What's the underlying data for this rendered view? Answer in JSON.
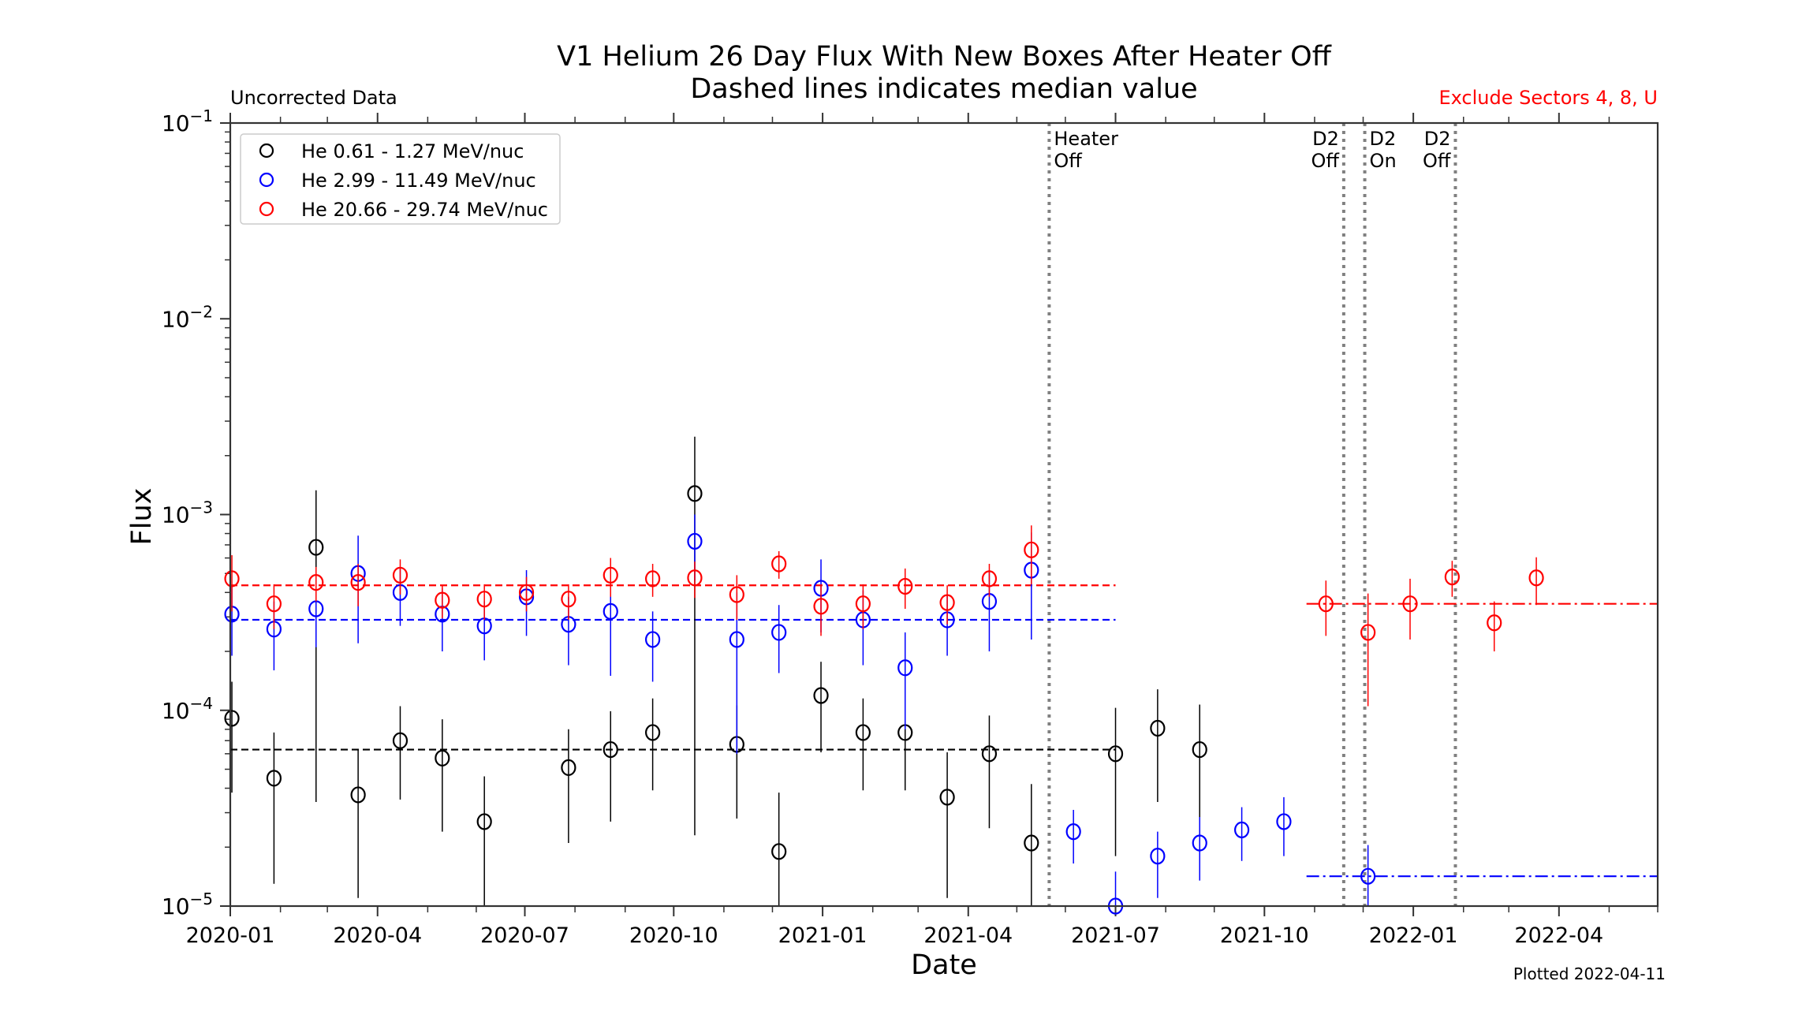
{
  "chart_data": {
    "type": "scatter",
    "title": "V1 Helium 26 Day Flux With New Boxes After Heater Off",
    "subtitle": "Dashed lines indicates median value",
    "left_note": "Uncorrected Data",
    "right_note": "Exclude Sectors 4, 8, U",
    "footer": "Plotted 2022-04-11",
    "xlabel": "Date",
    "ylabel": "Flux",
    "yscale": "log",
    "ylim": [
      1e-05,
      0.1
    ],
    "xlim_days": [
      0,
      882
    ],
    "x_epoch": "2020-01-01",
    "x_ticks": [
      {
        "label": "2020-01",
        "day": 0
      },
      {
        "label": "2020-04",
        "day": 91
      },
      {
        "label": "2020-07",
        "day": 182
      },
      {
        "label": "2020-10",
        "day": 274
      },
      {
        "label": "2021-01",
        "day": 366
      },
      {
        "label": "2021-04",
        "day": 456
      },
      {
        "label": "2021-07",
        "day": 547
      },
      {
        "label": "2021-10",
        "day": 639
      },
      {
        "label": "2022-01",
        "day": 731
      },
      {
        "label": "2022-04",
        "day": 821
      }
    ],
    "x_minor_days": [
      31,
      60,
      122,
      152,
      213,
      244,
      305,
      335,
      397,
      425,
      486,
      516,
      578,
      608,
      670,
      700,
      762,
      790,
      852
    ],
    "y_ticks": [
      {
        "label_base": "10",
        "label_exp": "−1",
        "value": 0.1
      },
      {
        "label_base": "10",
        "label_exp": "−2",
        "value": 0.01
      },
      {
        "label_base": "10",
        "label_exp": "−3",
        "value": 0.001
      },
      {
        "label_base": "10",
        "label_exp": "−4",
        "value": 0.0001
      },
      {
        "label_base": "10",
        "label_exp": "−5",
        "value": 1e-05
      }
    ],
    "legend_position": "top-left",
    "series": [
      {
        "name": "He 0.61 - 1.27 MeV/nuc",
        "color": "#000000",
        "points": [
          {
            "day": 1,
            "y": 9.1e-05,
            "lo": 3.8e-05,
            "hi": 0.00014
          },
          {
            "day": 27,
            "y": 4.5e-05,
            "lo": 1.3e-05,
            "hi": 7.7e-05
          },
          {
            "day": 53,
            "y": 0.00068,
            "lo": 3.4e-05,
            "hi": 0.00133
          },
          {
            "day": 79,
            "y": 3.7e-05,
            "lo": 1.1e-05,
            "hi": 6.3e-05
          },
          {
            "day": 105,
            "y": 7e-05,
            "lo": 3.5e-05,
            "hi": 0.000105
          },
          {
            "day": 131,
            "y": 5.7e-05,
            "lo": 2.4e-05,
            "hi": 9e-05
          },
          {
            "day": 157,
            "y": 2.7e-05,
            "lo": 1e-05,
            "hi": 4.6e-05
          },
          {
            "day": 209,
            "y": 5.1e-05,
            "lo": 2.1e-05,
            "hi": 8e-05
          },
          {
            "day": 235,
            "y": 6.3e-05,
            "lo": 2.7e-05,
            "hi": 9.9e-05
          },
          {
            "day": 261,
            "y": 7.7e-05,
            "lo": 3.9e-05,
            "hi": 0.000115
          },
          {
            "day": 287,
            "y": 0.00128,
            "lo": 2.3e-05,
            "hi": 0.0025
          },
          {
            "day": 313,
            "y": 6.7e-05,
            "lo": 2.8e-05,
            "hi": 0.000106
          },
          {
            "day": 339,
            "y": 1.9e-05,
            "lo": 1e-05,
            "hi": 3.8e-05
          },
          {
            "day": 365,
            "y": 0.000119,
            "lo": 6.1e-05,
            "hi": 0.000177
          },
          {
            "day": 391,
            "y": 7.7e-05,
            "lo": 3.9e-05,
            "hi": 0.000115
          },
          {
            "day": 417,
            "y": 7.7e-05,
            "lo": 3.9e-05,
            "hi": 0.000115
          },
          {
            "day": 443,
            "y": 3.6e-05,
            "lo": 1.1e-05,
            "hi": 6.1e-05
          },
          {
            "day": 469,
            "y": 6e-05,
            "lo": 2.5e-05,
            "hi": 9.4e-05
          },
          {
            "day": 495,
            "y": 2.1e-05,
            "lo": 1e-05,
            "hi": 4.2e-05
          },
          {
            "day": 547,
            "y": 6e-05,
            "lo": 1.8e-05,
            "hi": 0.000103
          },
          {
            "day": 573,
            "y": 8.1e-05,
            "lo": 3.4e-05,
            "hi": 0.000128
          },
          {
            "day": 599,
            "y": 6.3e-05,
            "lo": 1.9e-05,
            "hi": 0.000107
          }
        ],
        "median": 6.3e-05,
        "median_style": "dashed",
        "median_range_days": [
          0,
          547
        ]
      },
      {
        "name": "He 2.99 - 11.49 MeV/nuc",
        "color": "#0000ff",
        "points": [
          {
            "day": 1,
            "y": 0.00031,
            "lo": 0.00019,
            "hi": 0.00043
          },
          {
            "day": 27,
            "y": 0.00026,
            "lo": 0.00016,
            "hi": 0.00036
          },
          {
            "day": 53,
            "y": 0.00033,
            "lo": 0.00021,
            "hi": 0.00045
          },
          {
            "day": 79,
            "y": 0.0005,
            "lo": 0.00022,
            "hi": 0.00078
          },
          {
            "day": 105,
            "y": 0.0004,
            "lo": 0.00027,
            "hi": 0.00053
          },
          {
            "day": 131,
            "y": 0.00031,
            "lo": 0.0002,
            "hi": 0.00042
          },
          {
            "day": 157,
            "y": 0.00027,
            "lo": 0.00018,
            "hi": 0.00036
          },
          {
            "day": 183,
            "y": 0.00038,
            "lo": 0.00024,
            "hi": 0.00052
          },
          {
            "day": 209,
            "y": 0.000275,
            "lo": 0.00017,
            "hi": 0.00038
          },
          {
            "day": 235,
            "y": 0.00032,
            "lo": 0.00015,
            "hi": 0.00049
          },
          {
            "day": 261,
            "y": 0.00023,
            "lo": 0.00014,
            "hi": 0.00032
          },
          {
            "day": 287,
            "y": 0.00073,
            "lo": 0.00046,
            "hi": 0.001
          },
          {
            "day": 313,
            "y": 0.00023,
            "lo": 6e-05,
            "hi": 0.0004
          },
          {
            "day": 339,
            "y": 0.00025,
            "lo": 0.000155,
            "hi": 0.000345
          },
          {
            "day": 365,
            "y": 0.00042,
            "lo": 0.00025,
            "hi": 0.00059
          },
          {
            "day": 391,
            "y": 0.00029,
            "lo": 0.00017,
            "hi": 0.00041
          },
          {
            "day": 417,
            "y": 0.000165,
            "lo": 8e-05,
            "hi": 0.00025
          },
          {
            "day": 443,
            "y": 0.00029,
            "lo": 0.00019,
            "hi": 0.00039
          },
          {
            "day": 469,
            "y": 0.00036,
            "lo": 0.0002,
            "hi": 0.00052
          },
          {
            "day": 495,
            "y": 0.00052,
            "lo": 0.00023,
            "hi": 0.00081
          },
          {
            "day": 521,
            "y": 2.4e-05,
            "lo": 1.65e-05,
            "hi": 3.1e-05
          },
          {
            "day": 547,
            "y": 1e-05,
            "lo": 5e-06,
            "hi": 1.5e-05
          },
          {
            "day": 573,
            "y": 1.8e-05,
            "lo": 1.1e-05,
            "hi": 2.4e-05
          },
          {
            "day": 599,
            "y": 2.1e-05,
            "lo": 1.35e-05,
            "hi": 2.85e-05
          },
          {
            "day": 625,
            "y": 2.45e-05,
            "lo": 1.7e-05,
            "hi": 3.2e-05
          },
          {
            "day": 651,
            "y": 2.7e-05,
            "lo": 1.8e-05,
            "hi": 3.6e-05
          },
          {
            "day": 703,
            "y": 1.42e-05,
            "lo": 8e-06,
            "hi": 2.05e-05
          }
        ],
        "median": 0.00029,
        "median_style": "dashed",
        "median_range_days": [
          0,
          547
        ],
        "median2": 1.42e-05,
        "median2_style": "dashdot",
        "median2_range_days": [
          665,
          882
        ]
      },
      {
        "name": "He 20.66 - 29.74 MeV/nuc",
        "color": "#ff0000",
        "points": [
          {
            "day": 1,
            "y": 0.00047,
            "lo": 0.00032,
            "hi": 0.00062
          },
          {
            "day": 27,
            "y": 0.00035,
            "lo": 0.00026,
            "hi": 0.00044
          },
          {
            "day": 53,
            "y": 0.00045,
            "lo": 0.00036,
            "hi": 0.00054
          },
          {
            "day": 79,
            "y": 0.00045,
            "lo": 0.00034,
            "hi": 0.00056
          },
          {
            "day": 105,
            "y": 0.00049,
            "lo": 0.00039,
            "hi": 0.00059
          },
          {
            "day": 131,
            "y": 0.000365,
            "lo": 0.000295,
            "hi": 0.000435
          },
          {
            "day": 157,
            "y": 0.00037,
            "lo": 0.00029,
            "hi": 0.00044
          },
          {
            "day": 183,
            "y": 0.0004,
            "lo": 0.00032,
            "hi": 0.00048
          },
          {
            "day": 209,
            "y": 0.00037,
            "lo": 0.00029,
            "hi": 0.00044
          },
          {
            "day": 235,
            "y": 0.00049,
            "lo": 0.00038,
            "hi": 0.0006
          },
          {
            "day": 261,
            "y": 0.00047,
            "lo": 0.00038,
            "hi": 0.00056
          },
          {
            "day": 287,
            "y": 0.000475,
            "lo": 0.000375,
            "hi": 0.000575
          },
          {
            "day": 313,
            "y": 0.00039,
            "lo": 0.00029,
            "hi": 0.00049
          },
          {
            "day": 339,
            "y": 0.00056,
            "lo": 0.00047,
            "hi": 0.00065
          },
          {
            "day": 365,
            "y": 0.00034,
            "lo": 0.00024,
            "hi": 0.00044
          },
          {
            "day": 391,
            "y": 0.00035,
            "lo": 0.00026,
            "hi": 0.00044
          },
          {
            "day": 417,
            "y": 0.00043,
            "lo": 0.00033,
            "hi": 0.00053
          },
          {
            "day": 443,
            "y": 0.000355,
            "lo": 0.000275,
            "hi": 0.000435
          },
          {
            "day": 469,
            "y": 0.00047,
            "lo": 0.00038,
            "hi": 0.00056
          },
          {
            "day": 495,
            "y": 0.00066,
            "lo": 0.00044,
            "hi": 0.00088
          },
          {
            "day": 677,
            "y": 0.00035,
            "lo": 0.00024,
            "hi": 0.00046
          },
          {
            "day": 703,
            "y": 0.00025,
            "lo": 0.000105,
            "hi": 0.000395
          },
          {
            "day": 729,
            "y": 0.00035,
            "lo": 0.00023,
            "hi": 0.00047
          },
          {
            "day": 755,
            "y": 0.00048,
            "lo": 0.00038,
            "hi": 0.00058
          },
          {
            "day": 781,
            "y": 0.00028,
            "lo": 0.0002,
            "hi": 0.00036
          },
          {
            "day": 807,
            "y": 0.000475,
            "lo": 0.000345,
            "hi": 0.000605
          }
        ],
        "median": 0.000435,
        "median_style": "dashed",
        "median_range_days": [
          0,
          547
        ],
        "median2": 0.00035,
        "median2_style": "dashdot",
        "median2_range_days": [
          665,
          882
        ]
      }
    ],
    "events": [
      {
        "label_line1": "Heater",
        "label_line2": "Off",
        "day": 506,
        "align": "right-of-line"
      },
      {
        "label_line1": "D2",
        "label_line2": "Off",
        "day": 688,
        "align": "left-of-line"
      },
      {
        "label_line1": "D2",
        "label_line2": "On",
        "day": 701,
        "align": "right-of-line"
      },
      {
        "label_line1": "D2",
        "label_line2": "Off",
        "day": 757,
        "align": "left-of-line"
      }
    ],
    "event_line_color": "#808080",
    "median_line_colors": {
      "black": "#000000",
      "blue": "#0000ff",
      "red": "#ff0000"
    }
  }
}
